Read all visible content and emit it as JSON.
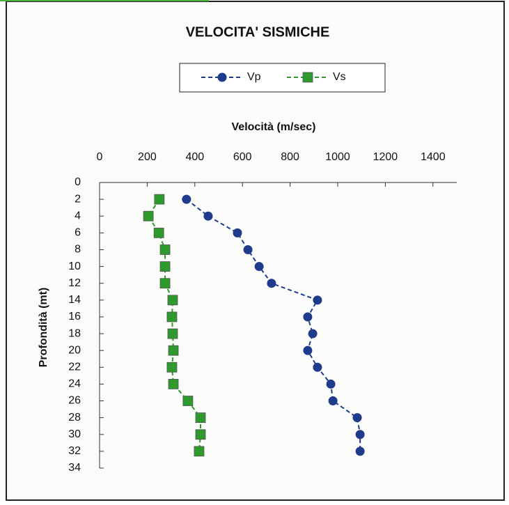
{
  "chart_data": {
    "type": "scatter",
    "title": "VELOCITA' SISMICHE",
    "xlabel": "Velocità (m/sec)",
    "ylabel": "Profondità (mt)",
    "xlim": [
      0,
      1500
    ],
    "xticks": [
      0,
      200,
      400,
      600,
      800,
      1000,
      1200,
      1400
    ],
    "ylim": [
      0,
      34
    ],
    "yticks": [
      0,
      2,
      4,
      6,
      8,
      10,
      12,
      14,
      16,
      18,
      20,
      22,
      24,
      26,
      28,
      30,
      32,
      34
    ],
    "y_inverted": true,
    "xaxis_position": "top",
    "legend": "top",
    "series": [
      {
        "name": "Vp",
        "color": "#1f3c8c",
        "marker": "circle",
        "x": [
          365,
          456,
          579,
          623,
          670,
          722,
          915,
          874,
          895,
          874,
          915,
          971,
          980,
          1082,
          1094,
          1094
        ],
        "y": [
          2,
          4,
          6,
          8,
          10,
          12,
          14,
          16,
          18,
          20,
          22,
          24,
          26,
          28,
          30,
          32
        ]
      },
      {
        "name": "Vs",
        "color": "#2e9a2e",
        "marker": "square",
        "x": [
          251,
          205,
          249,
          275,
          275,
          275,
          307,
          304,
          307,
          310,
          304,
          310,
          371,
          424,
          424,
          418
        ],
        "y": [
          2,
          4,
          6,
          8,
          10,
          12,
          14,
          16,
          18,
          20,
          22,
          24,
          26,
          28,
          30,
          32
        ]
      }
    ]
  }
}
